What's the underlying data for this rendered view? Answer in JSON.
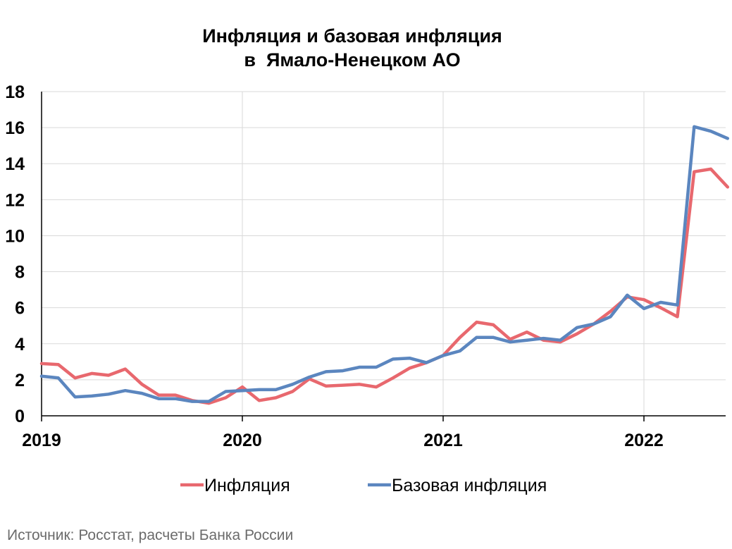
{
  "chart_data": {
    "type": "line",
    "title_lines": [
      "Инфляция и базовая инфляция",
      "в  Ямало-Ненецком АО"
    ],
    "xlabel": "",
    "ylabel": "",
    "ylim": [
      0,
      18
    ],
    "y_ticks": [
      0,
      2,
      4,
      6,
      8,
      10,
      12,
      14,
      16,
      18
    ],
    "x_ticks": [
      "2019",
      "2020",
      "2021",
      "2022"
    ],
    "x_start": "2019-01",
    "grid": true,
    "legend_position": "bottom",
    "series": [
      {
        "name": "Инфляция",
        "color": "#e8686e",
        "values": [
          2.9,
          2.85,
          2.1,
          2.35,
          2.25,
          2.6,
          1.75,
          1.15,
          1.15,
          0.85,
          0.7,
          1.0,
          1.6,
          0.85,
          1.0,
          1.35,
          2.05,
          1.65,
          1.7,
          1.75,
          1.6,
          2.1,
          2.65,
          2.95,
          3.35,
          4.35,
          5.2,
          5.05,
          4.25,
          4.65,
          4.2,
          4.1,
          4.55,
          5.1,
          5.8,
          6.6,
          6.45,
          6.0,
          5.5,
          13.55,
          13.7,
          12.7
        ]
      },
      {
        "name": "Базовая инфляция",
        "color": "#5b86bf",
        "values": [
          2.2,
          2.1,
          1.05,
          1.1,
          1.2,
          1.4,
          1.25,
          0.95,
          0.95,
          0.8,
          0.8,
          1.35,
          1.4,
          1.45,
          1.45,
          1.75,
          2.15,
          2.45,
          2.5,
          2.7,
          2.7,
          3.15,
          3.2,
          2.95,
          3.35,
          3.6,
          4.35,
          4.35,
          4.1,
          4.2,
          4.3,
          4.2,
          4.9,
          5.1,
          5.5,
          6.7,
          5.95,
          6.3,
          6.15,
          16.05,
          15.8,
          15.4
        ]
      }
    ]
  },
  "source_note": "Источник: Росстат, расчеты Банка России"
}
